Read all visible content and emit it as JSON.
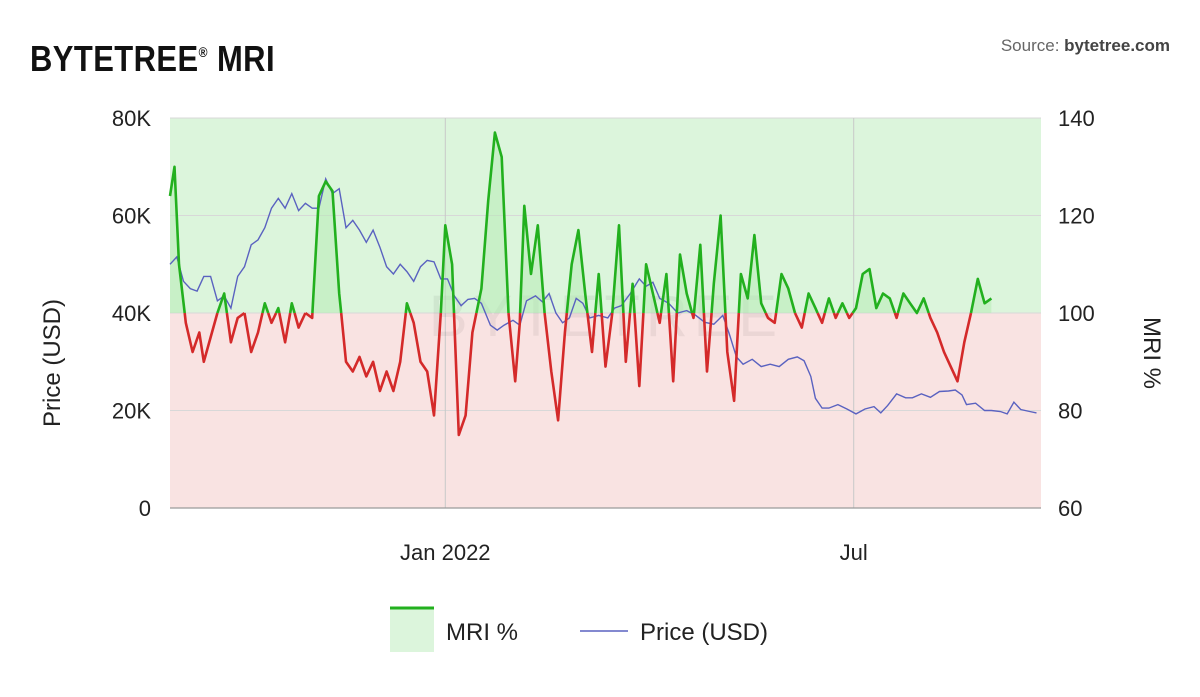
{
  "header": {
    "title": "BYTETREE",
    "title_mark": "®",
    "title_suffix": "MRI",
    "source_prefix": "Source:",
    "source_name": "bytetree.com"
  },
  "watermark": "BYTETREE",
  "chart_data": {
    "type": "line",
    "x_ticks": [
      {
        "date": "2022-01-01",
        "label": "Jan 2022"
      },
      {
        "date": "2022-07-01",
        "label": "Jul"
      }
    ],
    "xlim": [
      "2021-09-01",
      "2022-09-22"
    ],
    "y_left": {
      "label": "Price (USD)",
      "ticks": [
        "0",
        "20K",
        "40K",
        "60K",
        "80K"
      ],
      "lim": [
        0,
        80000
      ]
    },
    "y_right": {
      "label": "MRI %",
      "ticks": [
        "60",
        "80",
        "100",
        "120",
        "140"
      ],
      "lim": [
        60,
        140
      ]
    },
    "baseline": 100,
    "grid": true,
    "legend_position": "bottom-center",
    "colors": {
      "mri_above": "#22b01e",
      "mri_below": "#d42a2a",
      "fill_above": "#dcf5dc",
      "fill_below": "#f9e3e2",
      "price": "#5a62c0"
    },
    "series": [
      {
        "name": "MRI %",
        "axis": "right",
        "points": [
          [
            "2021-09-01",
            124
          ],
          [
            "2021-09-03",
            130
          ],
          [
            "2021-09-05",
            110
          ],
          [
            "2021-09-08",
            98
          ],
          [
            "2021-09-11",
            92
          ],
          [
            "2021-09-14",
            96
          ],
          [
            "2021-09-16",
            90
          ],
          [
            "2021-09-19",
            95
          ],
          [
            "2021-09-22",
            100
          ],
          [
            "2021-09-25",
            104
          ],
          [
            "2021-09-28",
            94
          ],
          [
            "2021-10-01",
            99
          ],
          [
            "2021-10-04",
            100
          ],
          [
            "2021-10-07",
            92
          ],
          [
            "2021-10-10",
            96
          ],
          [
            "2021-10-13",
            102
          ],
          [
            "2021-10-16",
            98
          ],
          [
            "2021-10-19",
            101
          ],
          [
            "2021-10-22",
            94
          ],
          [
            "2021-10-25",
            102
          ],
          [
            "2021-10-28",
            97
          ],
          [
            "2021-10-31",
            100
          ],
          [
            "2021-11-03",
            99
          ],
          [
            "2021-11-06",
            124
          ],
          [
            "2021-11-09",
            127
          ],
          [
            "2021-11-12",
            125
          ],
          [
            "2021-11-15",
            104
          ],
          [
            "2021-11-18",
            90
          ],
          [
            "2021-11-21",
            88
          ],
          [
            "2021-11-24",
            91
          ],
          [
            "2021-11-27",
            87
          ],
          [
            "2021-11-30",
            90
          ],
          [
            "2021-12-03",
            84
          ],
          [
            "2021-12-06",
            88
          ],
          [
            "2021-12-09",
            84
          ],
          [
            "2021-12-12",
            90
          ],
          [
            "2021-12-15",
            102
          ],
          [
            "2021-12-18",
            98
          ],
          [
            "2021-12-21",
            90
          ],
          [
            "2021-12-24",
            88
          ],
          [
            "2021-12-27",
            79
          ],
          [
            "2021-12-30",
            100
          ],
          [
            "2022-01-01",
            118
          ],
          [
            "2022-01-04",
            110
          ],
          [
            "2022-01-07",
            75
          ],
          [
            "2022-01-10",
            79
          ],
          [
            "2022-01-13",
            96
          ],
          [
            "2022-01-17",
            105
          ],
          [
            "2022-01-20",
            123
          ],
          [
            "2022-01-23",
            137
          ],
          [
            "2022-01-26",
            132
          ],
          [
            "2022-01-29",
            100
          ],
          [
            "2022-02-01",
            86
          ],
          [
            "2022-02-03",
            98
          ],
          [
            "2022-02-05",
            122
          ],
          [
            "2022-02-08",
            108
          ],
          [
            "2022-02-11",
            118
          ],
          [
            "2022-02-14",
            100
          ],
          [
            "2022-02-17",
            88
          ],
          [
            "2022-02-20",
            78
          ],
          [
            "2022-02-23",
            96
          ],
          [
            "2022-02-26",
            110
          ],
          [
            "2022-03-01",
            117
          ],
          [
            "2022-03-04",
            104
          ],
          [
            "2022-03-07",
            92
          ],
          [
            "2022-03-10",
            108
          ],
          [
            "2022-03-13",
            89
          ],
          [
            "2022-03-16",
            100
          ],
          [
            "2022-03-19",
            118
          ],
          [
            "2022-03-22",
            90
          ],
          [
            "2022-03-25",
            106
          ],
          [
            "2022-03-28",
            85
          ],
          [
            "2022-03-31",
            110
          ],
          [
            "2022-04-03",
            104
          ],
          [
            "2022-04-06",
            98
          ],
          [
            "2022-04-09",
            108
          ],
          [
            "2022-04-12",
            86
          ],
          [
            "2022-04-15",
            112
          ],
          [
            "2022-04-18",
            104
          ],
          [
            "2022-04-21",
            99
          ],
          [
            "2022-04-24",
            114
          ],
          [
            "2022-04-27",
            88
          ],
          [
            "2022-04-30",
            106
          ],
          [
            "2022-05-03",
            120
          ],
          [
            "2022-05-06",
            92
          ],
          [
            "2022-05-09",
            82
          ],
          [
            "2022-05-12",
            108
          ],
          [
            "2022-05-15",
            103
          ],
          [
            "2022-05-18",
            116
          ],
          [
            "2022-05-21",
            102
          ],
          [
            "2022-05-24",
            99
          ],
          [
            "2022-05-27",
            98
          ],
          [
            "2022-05-30",
            108
          ],
          [
            "2022-06-02",
            105
          ],
          [
            "2022-06-05",
            100
          ],
          [
            "2022-06-08",
            97
          ],
          [
            "2022-06-11",
            104
          ],
          [
            "2022-06-14",
            101
          ],
          [
            "2022-06-17",
            98
          ],
          [
            "2022-06-20",
            103
          ],
          [
            "2022-06-23",
            99
          ],
          [
            "2022-06-26",
            102
          ],
          [
            "2022-06-29",
            99
          ],
          [
            "2022-07-02",
            101
          ],
          [
            "2022-07-05",
            108
          ],
          [
            "2022-07-08",
            109
          ],
          [
            "2022-07-11",
            101
          ],
          [
            "2022-07-14",
            104
          ],
          [
            "2022-07-17",
            103
          ],
          [
            "2022-07-20",
            99
          ],
          [
            "2022-07-23",
            104
          ],
          [
            "2022-07-26",
            102
          ],
          [
            "2022-07-29",
            100
          ],
          [
            "2022-08-01",
            103
          ],
          [
            "2022-08-04",
            99
          ],
          [
            "2022-08-07",
            96
          ],
          [
            "2022-08-10",
            92
          ],
          [
            "2022-08-13",
            89
          ],
          [
            "2022-08-16",
            86
          ],
          [
            "2022-08-19",
            94
          ],
          [
            "2022-08-22",
            100
          ],
          [
            "2022-08-25",
            107
          ],
          [
            "2022-08-28",
            102
          ],
          [
            "2022-08-31",
            103
          ]
        ]
      },
      {
        "name": "Price (USD)",
        "axis": "left",
        "points": [
          [
            "2021-09-01",
            50000
          ],
          [
            "2021-09-04",
            51500
          ],
          [
            "2021-09-07",
            46500
          ],
          [
            "2021-09-10",
            45000
          ],
          [
            "2021-09-13",
            44500
          ],
          [
            "2021-09-16",
            47500
          ],
          [
            "2021-09-19",
            47500
          ],
          [
            "2021-09-22",
            42500
          ],
          [
            "2021-09-25",
            43500
          ],
          [
            "2021-09-28",
            41000
          ],
          [
            "2021-10-01",
            47500
          ],
          [
            "2021-10-04",
            49500
          ],
          [
            "2021-10-07",
            54000
          ],
          [
            "2021-10-10",
            55000
          ],
          [
            "2021-10-13",
            57500
          ],
          [
            "2021-10-16",
            61500
          ],
          [
            "2021-10-19",
            63500
          ],
          [
            "2021-10-22",
            61500
          ],
          [
            "2021-10-25",
            64500
          ],
          [
            "2021-10-28",
            61000
          ],
          [
            "2021-10-31",
            62500
          ],
          [
            "2021-11-03",
            61500
          ],
          [
            "2021-11-06",
            61500
          ],
          [
            "2021-11-09",
            67500
          ],
          [
            "2021-11-12",
            64500
          ],
          [
            "2021-11-15",
            65500
          ],
          [
            "2021-11-18",
            57500
          ],
          [
            "2021-11-21",
            59000
          ],
          [
            "2021-11-24",
            57000
          ],
          [
            "2021-11-27",
            54500
          ],
          [
            "2021-11-30",
            57000
          ],
          [
            "2021-12-03",
            53500
          ],
          [
            "2021-12-06",
            49500
          ],
          [
            "2021-12-09",
            48000
          ],
          [
            "2021-12-12",
            50000
          ],
          [
            "2021-12-15",
            48500
          ],
          [
            "2021-12-18",
            46500
          ],
          [
            "2021-12-21",
            49500
          ],
          [
            "2021-12-24",
            50800
          ],
          [
            "2021-12-27",
            50500
          ],
          [
            "2021-12-30",
            47000
          ],
          [
            "2022-01-02",
            47000
          ],
          [
            "2022-01-05",
            43500
          ],
          [
            "2022-01-08",
            41500
          ],
          [
            "2022-01-11",
            42800
          ],
          [
            "2022-01-14",
            43000
          ],
          [
            "2022-01-17",
            42000
          ],
          [
            "2022-01-21",
            37500
          ],
          [
            "2022-01-24",
            36500
          ],
          [
            "2022-01-27",
            37500
          ],
          [
            "2022-01-31",
            38500
          ],
          [
            "2022-02-03",
            37500
          ],
          [
            "2022-02-06",
            42500
          ],
          [
            "2022-02-10",
            43500
          ],
          [
            "2022-02-13",
            42300
          ],
          [
            "2022-02-16",
            44000
          ],
          [
            "2022-02-19",
            40000
          ],
          [
            "2022-02-22",
            38000
          ],
          [
            "2022-02-25",
            39000
          ],
          [
            "2022-02-28",
            43000
          ],
          [
            "2022-03-03",
            42000
          ],
          [
            "2022-03-06",
            39000
          ],
          [
            "2022-03-10",
            39500
          ],
          [
            "2022-03-14",
            39000
          ],
          [
            "2022-03-17",
            41000
          ],
          [
            "2022-03-20",
            41500
          ],
          [
            "2022-03-24",
            44000
          ],
          [
            "2022-03-28",
            47000
          ],
          [
            "2022-03-31",
            45500
          ],
          [
            "2022-04-03",
            46300
          ],
          [
            "2022-04-06",
            43000
          ],
          [
            "2022-04-10",
            42000
          ],
          [
            "2022-04-14",
            40000
          ],
          [
            "2022-04-18",
            40500
          ],
          [
            "2022-04-22",
            39500
          ],
          [
            "2022-04-26",
            38100
          ],
          [
            "2022-04-30",
            37700
          ],
          [
            "2022-05-04",
            39500
          ],
          [
            "2022-05-07",
            35500
          ],
          [
            "2022-05-10",
            31000
          ],
          [
            "2022-05-13",
            29500
          ],
          [
            "2022-05-17",
            30500
          ],
          [
            "2022-05-21",
            29000
          ],
          [
            "2022-05-25",
            29500
          ],
          [
            "2022-05-29",
            29000
          ],
          [
            "2022-06-02",
            30500
          ],
          [
            "2022-06-06",
            31000
          ],
          [
            "2022-06-09",
            30200
          ],
          [
            "2022-06-12",
            27000
          ],
          [
            "2022-06-14",
            22500
          ],
          [
            "2022-06-17",
            20500
          ],
          [
            "2022-06-20",
            20500
          ],
          [
            "2022-06-24",
            21200
          ],
          [
            "2022-06-28",
            20300
          ],
          [
            "2022-07-02",
            19300
          ],
          [
            "2022-07-06",
            20300
          ],
          [
            "2022-07-10",
            20800
          ],
          [
            "2022-07-13",
            19500
          ],
          [
            "2022-07-16",
            21000
          ],
          [
            "2022-07-20",
            23400
          ],
          [
            "2022-07-24",
            22600
          ],
          [
            "2022-07-27",
            22600
          ],
          [
            "2022-07-31",
            23400
          ],
          [
            "2022-08-04",
            22700
          ],
          [
            "2022-08-08",
            23900
          ],
          [
            "2022-08-12",
            24000
          ],
          [
            "2022-08-15",
            24200
          ],
          [
            "2022-08-18",
            23200
          ],
          [
            "2022-08-20",
            21200
          ],
          [
            "2022-08-24",
            21500
          ],
          [
            "2022-08-28",
            20000
          ],
          [
            "2022-08-31",
            20000
          ],
          [
            "2022-09-04",
            19800
          ],
          [
            "2022-09-07",
            19300
          ],
          [
            "2022-09-10",
            21700
          ],
          [
            "2022-09-13",
            20200
          ],
          [
            "2022-09-17",
            19800
          ],
          [
            "2022-09-20",
            19500
          ]
        ]
      }
    ]
  }
}
